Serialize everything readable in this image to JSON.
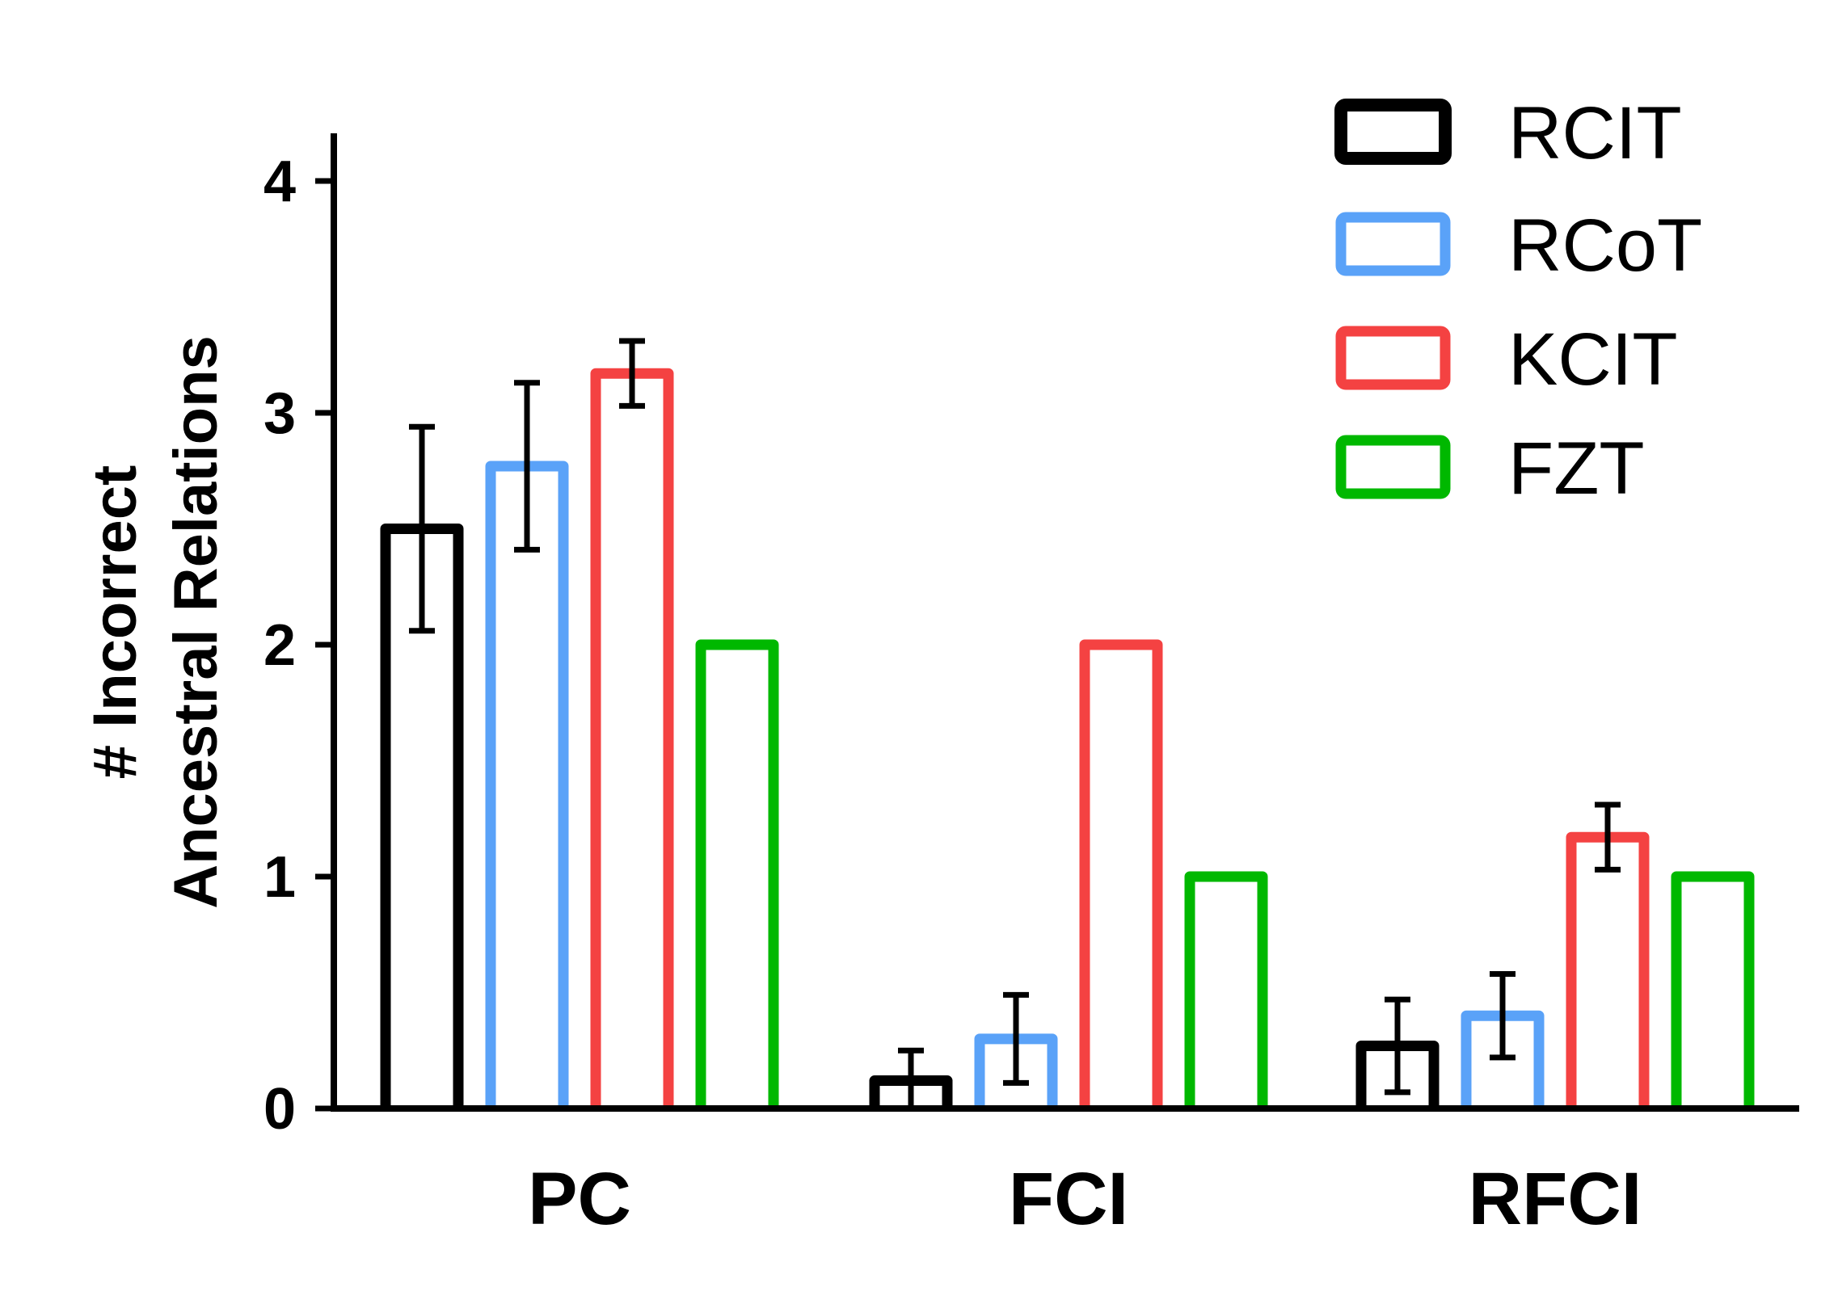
{
  "chart_data": {
    "type": "bar",
    "title": "",
    "xlabel": "",
    "ylabel_lines": [
      "# Incorrect",
      "Ancestral Relations"
    ],
    "categories": [
      "PC",
      "FCI",
      "RFCI"
    ],
    "ylim": [
      0,
      4.2
    ],
    "yticks": [
      0,
      1,
      2,
      3,
      4
    ],
    "ytick_labels": [
      "0",
      "1",
      "2",
      "3",
      "4"
    ],
    "legend_position": "top-right",
    "series": [
      {
        "name": "RCIT",
        "color": "#000000",
        "legend_stroke": "heavy",
        "values": [
          2.5,
          0.12,
          0.27
        ],
        "errors": [
          [
            2.06,
            2.94
          ],
          [
            0.0,
            0.25
          ],
          [
            0.07,
            0.47
          ]
        ]
      },
      {
        "name": "RCoT",
        "color": "#5aa2f8",
        "legend_stroke": "normal",
        "values": [
          2.77,
          0.3,
          0.4
        ],
        "errors": [
          [
            2.41,
            3.13
          ],
          [
            0.11,
            0.49
          ],
          [
            0.22,
            0.58
          ]
        ]
      },
      {
        "name": "KCIT",
        "color": "#f44242",
        "legend_stroke": "normal",
        "values": [
          3.17,
          2.0,
          1.17
        ],
        "errors": [
          [
            3.03,
            3.31
          ],
          null,
          [
            1.03,
            1.31
          ]
        ]
      },
      {
        "name": "FZT",
        "color": "#00b800",
        "legend_stroke": "normal",
        "values": [
          2.0,
          1.0,
          1.0
        ],
        "errors": [
          null,
          null,
          null
        ]
      }
    ]
  }
}
